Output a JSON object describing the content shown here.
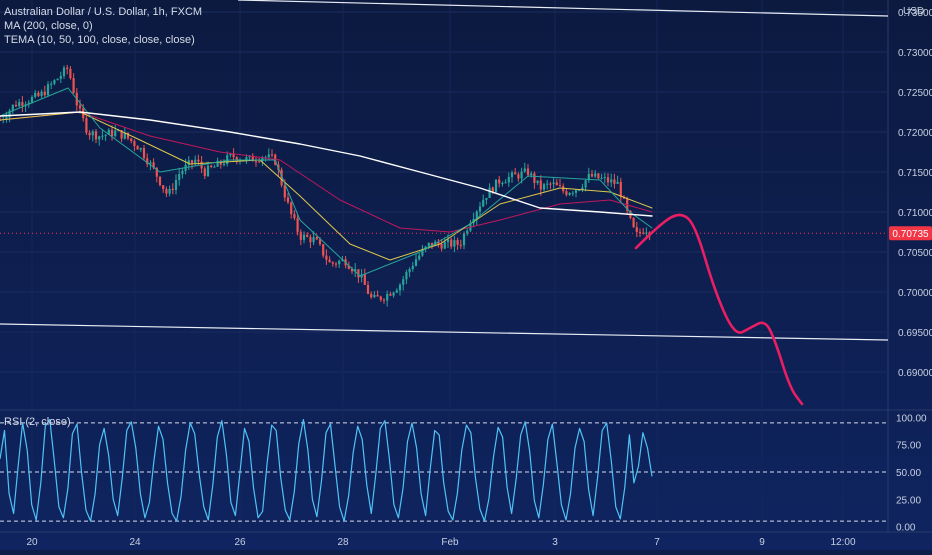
{
  "legend": {
    "symbol_title": "Australian Dollar / U.S. Dollar, 1h, FXCM",
    "ma_label": "MA (200, close, 0)",
    "tema_label": "TEMA (10, 50, 100, close, close, close)",
    "rsi_label": "RSI (2, close)"
  },
  "currency": "USD",
  "last_price_label": "0.70735",
  "colors": {
    "background": "#0e1e4a",
    "candle_up": "#26a69a",
    "candle_down": "#ef5350",
    "ma_line": "#ffffff",
    "tema_fast": "#26a69a",
    "tema_mid": "#e0c84a",
    "tema_slow": "#c2185b",
    "rsi_line": "#4fc3f7",
    "projection": "#e91e63",
    "last_price": "#f23645"
  },
  "chart_data": [
    {
      "type": "candlestick",
      "title": "Australian Dollar / U.S. Dollar, 1h, FXCM",
      "ylim": [
        0.6855,
        0.7365
      ],
      "y_ticks": [
        "0.73500",
        "0.73000",
        "0.72500",
        "0.72000",
        "0.71500",
        "0.71000",
        "0.70500",
        "0.70000",
        "0.69500",
        "0.69000"
      ],
      "x_ticks": [
        "20",
        "24",
        "26",
        "28",
        "Feb",
        "3",
        "7",
        "9",
        "12:00"
      ],
      "last_price": 0.70735,
      "price_anchors": [
        [
          0,
          0.7215
        ],
        [
          15,
          0.7235
        ],
        [
          40,
          0.7245
        ],
        [
          60,
          0.727
        ],
        [
          68,
          0.728
        ],
        [
          78,
          0.723
        ],
        [
          88,
          0.72
        ],
        [
          100,
          0.7195
        ],
        [
          115,
          0.72
        ],
        [
          125,
          0.7195
        ],
        [
          140,
          0.718
        ],
        [
          155,
          0.715
        ],
        [
          168,
          0.712
        ],
        [
          180,
          0.715
        ],
        [
          195,
          0.7165
        ],
        [
          205,
          0.715
        ],
        [
          220,
          0.716
        ],
        [
          232,
          0.717
        ],
        [
          248,
          0.7165
        ],
        [
          262,
          0.717
        ],
        [
          275,
          0.7165
        ],
        [
          283,
          0.713
        ],
        [
          290,
          0.71
        ],
        [
          300,
          0.707
        ],
        [
          315,
          0.7065
        ],
        [
          330,
          0.7035
        ],
        [
          345,
          0.704
        ],
        [
          360,
          0.702
        ],
        [
          372,
          0.699
        ],
        [
          385,
          0.6995
        ],
        [
          400,
          0.701
        ],
        [
          415,
          0.704
        ],
        [
          430,
          0.706
        ],
        [
          445,
          0.706
        ],
        [
          460,
          0.706
        ],
        [
          470,
          0.709
        ],
        [
          485,
          0.712
        ],
        [
          500,
          0.714
        ],
        [
          515,
          0.7145
        ],
        [
          528,
          0.715
        ],
        [
          540,
          0.713
        ],
        [
          552,
          0.7135
        ],
        [
          565,
          0.7125
        ],
        [
          578,
          0.713
        ],
        [
          590,
          0.7145
        ],
        [
          605,
          0.714
        ],
        [
          618,
          0.7135
        ],
        [
          628,
          0.7095
        ],
        [
          636,
          0.707
        ],
        [
          645,
          0.708
        ],
        [
          652,
          0.70735
        ]
      ],
      "overlays": {
        "MA (200, close, 0)": [
          [
            0,
            0.722
          ],
          [
            80,
            0.7225
          ],
          [
            150,
            0.7215
          ],
          [
            230,
            0.72
          ],
          [
            300,
            0.7185
          ],
          [
            360,
            0.717
          ],
          [
            420,
            0.715
          ],
          [
            480,
            0.713
          ],
          [
            540,
            0.7105
          ],
          [
            600,
            0.71
          ],
          [
            652,
            0.7095
          ]
        ],
        "TEMA fast": [
          [
            0,
            0.722
          ],
          [
            68,
            0.7255
          ],
          [
            100,
            0.7205
          ],
          [
            160,
            0.715
          ],
          [
            230,
            0.7165
          ],
          [
            275,
            0.7165
          ],
          [
            300,
            0.709
          ],
          [
            360,
            0.702
          ],
          [
            420,
            0.705
          ],
          [
            470,
            0.7085
          ],
          [
            528,
            0.7145
          ],
          [
            600,
            0.714
          ],
          [
            630,
            0.71
          ],
          [
            652,
            0.708
          ]
        ],
        "TEMA mid": [
          [
            0,
            0.7215
          ],
          [
            80,
            0.7225
          ],
          [
            140,
            0.719
          ],
          [
            190,
            0.716
          ],
          [
            260,
            0.7165
          ],
          [
            300,
            0.712
          ],
          [
            350,
            0.706
          ],
          [
            390,
            0.704
          ],
          [
            440,
            0.706
          ],
          [
            500,
            0.711
          ],
          [
            560,
            0.713
          ],
          [
            610,
            0.7125
          ],
          [
            652,
            0.7105
          ]
        ],
        "TEMA slow": [
          [
            0,
            0.7215
          ],
          [
            80,
            0.7225
          ],
          [
            150,
            0.7195
          ],
          [
            220,
            0.7175
          ],
          [
            280,
            0.7165
          ],
          [
            340,
            0.7115
          ],
          [
            400,
            0.708
          ],
          [
            450,
            0.7075
          ],
          [
            500,
            0.709
          ],
          [
            560,
            0.711
          ],
          [
            610,
            0.7115
          ],
          [
            652,
            0.71
          ]
        ]
      },
      "trendlines": [
        [
          [
            238,
            0.7365
          ],
          [
            888,
            0.7345
          ]
        ],
        [
          [
            0,
            0.696
          ],
          [
            888,
            0.694
          ]
        ]
      ],
      "projection": [
        [
          636,
          0.7055
        ],
        [
          660,
          0.7085
        ],
        [
          680,
          0.71
        ],
        [
          695,
          0.7085
        ],
        [
          715,
          0.7
        ],
        [
          735,
          0.6945
        ],
        [
          750,
          0.6955
        ],
        [
          765,
          0.6965
        ],
        [
          775,
          0.694
        ],
        [
          790,
          0.688
        ],
        [
          802,
          0.686
        ]
      ]
    },
    {
      "type": "line",
      "title": "RSI (2, close)",
      "ylim": [
        -5,
        105
      ],
      "y_ticks": [
        "100.00",
        "75.00",
        "50.00",
        "25.00",
        "0.00"
      ],
      "reference_levels": [
        95,
        50,
        5
      ],
      "x_range": [
        0,
        652
      ],
      "values": [
        62,
        88,
        30,
        12,
        55,
        95,
        70,
        20,
        6,
        40,
        92,
        98,
        60,
        18,
        8,
        35,
        85,
        94,
        50,
        15,
        5,
        30,
        75,
        90,
        65,
        25,
        10,
        45,
        88,
        96,
        72,
        30,
        8,
        22,
        60,
        92,
        80,
        40,
        12,
        5,
        28,
        70,
        95,
        85,
        48,
        18,
        6,
        38,
        82,
        97,
        66,
        22,
        10,
        50,
        90,
        78,
        35,
        8,
        14,
        58,
        93,
        88,
        45,
        15,
        6,
        32,
        76,
        98,
        70,
        25,
        9,
        42,
        86,
        94,
        55,
        18,
        5,
        28,
        68,
        92,
        80,
        38,
        12,
        48,
        90,
        97,
        62,
        20,
        8,
        35,
        78,
        95,
        72,
        30,
        10,
        52,
        88,
        84,
        40,
        14,
        6,
        30,
        70,
        93,
        86,
        45,
        16,
        5,
        26,
        64,
        91,
        82,
        36,
        12,
        44,
        84,
        96,
        68,
        24,
        8,
        38,
        80,
        94,
        58,
        20,
        6,
        30,
        72,
        90,
        78,
        34,
        10,
        46,
        88,
        95,
        60,
        18,
        7,
        36,
        84,
        40,
        55,
        86,
        72,
        46
      ]
    }
  ]
}
